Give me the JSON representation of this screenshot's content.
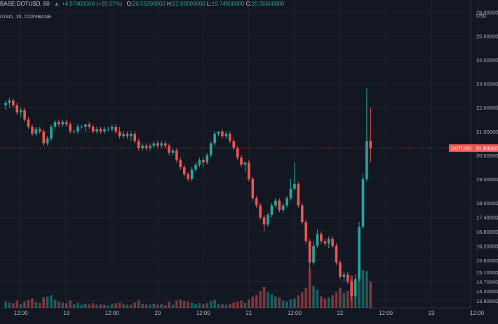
{
  "header": {
    "symbol": "BASE:DOTUSD, 60",
    "open_label": "O:",
    "open": "20.55200000",
    "high_label": "H:",
    "high": "22.00000000",
    "low_label": "L:",
    "low": "19.74900000",
    "close_label": "C:",
    "close": "20.30600000",
    "change": "+4.57400000 (+29.07%)",
    "change_icon": "triangle-up"
  },
  "subheader": "/USD, 1h, COINBASE",
  "axis_currency": "USD",
  "price_badge": {
    "label": "DOTUSD",
    "value": "20.306000"
  },
  "colors": {
    "background": "#131722",
    "up": "#26a69a",
    "down": "#ef5350",
    "grid": "#1e222d",
    "text": "#b2b5be"
  },
  "chart_data": {
    "type": "candlestick",
    "ylim": [
      13.6,
      26.1
    ],
    "y_ticks": [
      {
        "value": 26.0,
        "label": "26.00000"
      },
      {
        "value": 25.0,
        "label": "25.00000"
      },
      {
        "value": 24.0,
        "label": "24.00000"
      },
      {
        "value": 23.0,
        "label": "23.00000"
      },
      {
        "value": 22.0,
        "label": "22.00000"
      },
      {
        "value": 21.0,
        "label": "21.00000"
      },
      {
        "value": 20.0,
        "label": "20.00000"
      },
      {
        "value": 19.0,
        "label": "19.00000"
      },
      {
        "value": 18.0,
        "label": "18.00000"
      },
      {
        "value": 17.4,
        "label": "17.40000"
      },
      {
        "value": 16.8,
        "label": "16.80000"
      },
      {
        "value": 16.2,
        "label": "16.20000"
      },
      {
        "value": 15.6,
        "label": "15.60000"
      },
      {
        "value": 15.1,
        "label": "15.10000"
      },
      {
        "value": 14.7,
        "label": "14.70000"
      },
      {
        "value": 14.3,
        "label": "14.30000"
      },
      {
        "value": 13.9,
        "label": "13.90000"
      }
    ],
    "x_ticks": [
      {
        "index": 4,
        "label": "12:00"
      },
      {
        "index": 16,
        "label": "19"
      },
      {
        "index": 28,
        "label": "12:00"
      },
      {
        "index": 40,
        "label": "20"
      },
      {
        "index": 52,
        "label": "12:00"
      },
      {
        "index": 64,
        "label": "21"
      },
      {
        "index": 76,
        "label": "12:00"
      },
      {
        "index": 88,
        "label": "22"
      },
      {
        "index": 100,
        "label": "12:00"
      },
      {
        "index": 112,
        "label": "23"
      },
      {
        "index": 124,
        "label": "12:00"
      }
    ],
    "candles": [
      {
        "o": 22.1,
        "h": 22.3,
        "l": 21.9,
        "c": 22.2,
        "v": 12
      },
      {
        "o": 22.2,
        "h": 22.4,
        "l": 22.0,
        "c": 22.3,
        "v": 10
      },
      {
        "o": 22.3,
        "h": 22.4,
        "l": 22.0,
        "c": 22.1,
        "v": 9
      },
      {
        "o": 22.1,
        "h": 22.2,
        "l": 21.7,
        "c": 21.8,
        "v": 14
      },
      {
        "o": 21.8,
        "h": 22.0,
        "l": 21.6,
        "c": 21.9,
        "v": 8
      },
      {
        "o": 21.9,
        "h": 22.0,
        "l": 21.4,
        "c": 21.5,
        "v": 12
      },
      {
        "o": 21.5,
        "h": 21.6,
        "l": 21.1,
        "c": 21.2,
        "v": 15
      },
      {
        "o": 21.2,
        "h": 21.3,
        "l": 20.8,
        "c": 20.9,
        "v": 18
      },
      {
        "o": 20.9,
        "h": 21.2,
        "l": 20.8,
        "c": 21.1,
        "v": 11
      },
      {
        "o": 21.1,
        "h": 21.2,
        "l": 20.9,
        "c": 21.0,
        "v": 9
      },
      {
        "o": 21.0,
        "h": 21.1,
        "l": 20.4,
        "c": 20.5,
        "v": 20
      },
      {
        "o": 20.5,
        "h": 20.8,
        "l": 20.4,
        "c": 20.7,
        "v": 22
      },
      {
        "o": 20.7,
        "h": 21.3,
        "l": 20.6,
        "c": 21.2,
        "v": 24
      },
      {
        "o": 21.2,
        "h": 21.5,
        "l": 21.1,
        "c": 21.4,
        "v": 16
      },
      {
        "o": 21.4,
        "h": 21.5,
        "l": 21.2,
        "c": 21.3,
        "v": 12
      },
      {
        "o": 21.3,
        "h": 21.5,
        "l": 21.2,
        "c": 21.4,
        "v": 10
      },
      {
        "o": 21.4,
        "h": 21.5,
        "l": 21.2,
        "c": 21.3,
        "v": 9
      },
      {
        "o": 21.3,
        "h": 21.4,
        "l": 20.9,
        "c": 21.0,
        "v": 14
      },
      {
        "o": 21.0,
        "h": 21.1,
        "l": 20.9,
        "c": 21.0,
        "v": 7
      },
      {
        "o": 21.0,
        "h": 21.3,
        "l": 20.9,
        "c": 21.2,
        "v": 10
      },
      {
        "o": 21.2,
        "h": 21.3,
        "l": 21.1,
        "c": 21.2,
        "v": 6
      },
      {
        "o": 21.2,
        "h": 21.3,
        "l": 21.0,
        "c": 21.3,
        "v": 8
      },
      {
        "o": 21.3,
        "h": 21.4,
        "l": 21.1,
        "c": 21.2,
        "v": 7
      },
      {
        "o": 21.2,
        "h": 21.3,
        "l": 20.9,
        "c": 21.0,
        "v": 9
      },
      {
        "o": 21.0,
        "h": 21.2,
        "l": 20.9,
        "c": 21.1,
        "v": 6
      },
      {
        "o": 21.1,
        "h": 21.2,
        "l": 20.9,
        "c": 21.0,
        "v": 7
      },
      {
        "o": 21.0,
        "h": 21.2,
        "l": 20.9,
        "c": 21.1,
        "v": 6
      },
      {
        "o": 21.1,
        "h": 21.2,
        "l": 21.0,
        "c": 21.1,
        "v": 5
      },
      {
        "o": 21.1,
        "h": 21.3,
        "l": 21.0,
        "c": 21.2,
        "v": 8
      },
      {
        "o": 21.2,
        "h": 21.3,
        "l": 20.9,
        "c": 21.0,
        "v": 9
      },
      {
        "o": 21.0,
        "h": 21.2,
        "l": 20.7,
        "c": 20.8,
        "v": 10
      },
      {
        "o": 20.8,
        "h": 21.0,
        "l": 20.7,
        "c": 20.9,
        "v": 7
      },
      {
        "o": 20.9,
        "h": 21.0,
        "l": 20.7,
        "c": 20.8,
        "v": 6
      },
      {
        "o": 20.8,
        "h": 21.0,
        "l": 20.6,
        "c": 20.9,
        "v": 6
      },
      {
        "o": 20.9,
        "h": 21.0,
        "l": 20.5,
        "c": 20.6,
        "v": 10
      },
      {
        "o": 20.6,
        "h": 20.7,
        "l": 20.2,
        "c": 20.3,
        "v": 14
      },
      {
        "o": 20.3,
        "h": 20.5,
        "l": 20.2,
        "c": 20.4,
        "v": 8
      },
      {
        "o": 20.4,
        "h": 20.5,
        "l": 20.2,
        "c": 20.3,
        "v": 7
      },
      {
        "o": 20.3,
        "h": 20.5,
        "l": 20.2,
        "c": 20.4,
        "v": 6
      },
      {
        "o": 20.4,
        "h": 20.6,
        "l": 20.3,
        "c": 20.5,
        "v": 8
      },
      {
        "o": 20.5,
        "h": 20.6,
        "l": 20.3,
        "c": 20.4,
        "v": 6
      },
      {
        "o": 20.4,
        "h": 20.6,
        "l": 20.3,
        "c": 20.5,
        "v": 7
      },
      {
        "o": 20.5,
        "h": 20.6,
        "l": 20.3,
        "c": 20.4,
        "v": 5
      },
      {
        "o": 20.4,
        "h": 20.5,
        "l": 20.0,
        "c": 20.1,
        "v": 12
      },
      {
        "o": 20.1,
        "h": 20.3,
        "l": 20.0,
        "c": 20.2,
        "v": 6
      },
      {
        "o": 20.2,
        "h": 20.3,
        "l": 19.7,
        "c": 19.8,
        "v": 14
      },
      {
        "o": 19.8,
        "h": 19.9,
        "l": 19.4,
        "c": 19.5,
        "v": 16
      },
      {
        "o": 19.5,
        "h": 19.6,
        "l": 19.1,
        "c": 19.2,
        "v": 13
      },
      {
        "o": 19.2,
        "h": 19.3,
        "l": 18.9,
        "c": 19.0,
        "v": 12
      },
      {
        "o": 19.0,
        "h": 19.5,
        "l": 18.9,
        "c": 19.4,
        "v": 10
      },
      {
        "o": 19.4,
        "h": 19.7,
        "l": 19.3,
        "c": 19.6,
        "v": 8
      },
      {
        "o": 19.6,
        "h": 19.9,
        "l": 19.5,
        "c": 19.8,
        "v": 9
      },
      {
        "o": 19.8,
        "h": 19.9,
        "l": 19.5,
        "c": 19.7,
        "v": 7
      },
      {
        "o": 19.7,
        "h": 20.1,
        "l": 19.6,
        "c": 20.0,
        "v": 9
      },
      {
        "o": 20.0,
        "h": 20.6,
        "l": 19.9,
        "c": 20.5,
        "v": 13
      },
      {
        "o": 20.5,
        "h": 21.0,
        "l": 20.4,
        "c": 20.9,
        "v": 15
      },
      {
        "o": 20.9,
        "h": 21.0,
        "l": 20.8,
        "c": 21.0,
        "v": 8
      },
      {
        "o": 21.0,
        "h": 21.1,
        "l": 20.7,
        "c": 20.8,
        "v": 7
      },
      {
        "o": 20.8,
        "h": 21.0,
        "l": 20.7,
        "c": 20.9,
        "v": 6
      },
      {
        "o": 20.9,
        "h": 21.0,
        "l": 20.5,
        "c": 20.6,
        "v": 8
      },
      {
        "o": 20.6,
        "h": 20.7,
        "l": 20.2,
        "c": 20.3,
        "v": 10
      },
      {
        "o": 20.3,
        "h": 20.4,
        "l": 19.8,
        "c": 19.9,
        "v": 12
      },
      {
        "o": 19.9,
        "h": 20.0,
        "l": 19.5,
        "c": 19.6,
        "v": 14
      },
      {
        "o": 19.6,
        "h": 19.7,
        "l": 19.3,
        "c": 19.7,
        "v": 10
      },
      {
        "o": 19.7,
        "h": 19.8,
        "l": 18.9,
        "c": 19.0,
        "v": 16
      },
      {
        "o": 19.0,
        "h": 19.1,
        "l": 18.1,
        "c": 18.2,
        "v": 22
      },
      {
        "o": 18.2,
        "h": 18.3,
        "l": 17.8,
        "c": 17.9,
        "v": 25
      },
      {
        "o": 17.9,
        "h": 18.0,
        "l": 17.3,
        "c": 17.4,
        "v": 32
      },
      {
        "o": 17.4,
        "h": 17.5,
        "l": 16.8,
        "c": 17.1,
        "v": 40
      },
      {
        "o": 17.1,
        "h": 17.6,
        "l": 17.0,
        "c": 17.5,
        "v": 30
      },
      {
        "o": 17.5,
        "h": 18.0,
        "l": 17.4,
        "c": 17.9,
        "v": 26
      },
      {
        "o": 17.9,
        "h": 18.2,
        "l": 17.8,
        "c": 18.1,
        "v": 22
      },
      {
        "o": 18.1,
        "h": 18.2,
        "l": 17.6,
        "c": 17.7,
        "v": 20
      },
      {
        "o": 17.7,
        "h": 18.0,
        "l": 17.6,
        "c": 17.9,
        "v": 14
      },
      {
        "o": 17.9,
        "h": 18.3,
        "l": 17.8,
        "c": 18.2,
        "v": 12
      },
      {
        "o": 18.2,
        "h": 19.0,
        "l": 18.1,
        "c": 18.6,
        "v": 16
      },
      {
        "o": 18.6,
        "h": 19.7,
        "l": 18.5,
        "c": 18.8,
        "v": 18
      },
      {
        "o": 18.8,
        "h": 18.9,
        "l": 17.8,
        "c": 17.9,
        "v": 24
      },
      {
        "o": 17.9,
        "h": 18.0,
        "l": 17.1,
        "c": 17.2,
        "v": 30
      },
      {
        "o": 17.2,
        "h": 17.3,
        "l": 16.3,
        "c": 16.4,
        "v": 38
      },
      {
        "o": 16.4,
        "h": 16.5,
        "l": 15.2,
        "c": 15.5,
        "v": 75
      },
      {
        "o": 15.5,
        "h": 16.4,
        "l": 15.4,
        "c": 16.2,
        "v": 42
      },
      {
        "o": 16.2,
        "h": 16.9,
        "l": 16.1,
        "c": 16.7,
        "v": 35
      },
      {
        "o": 16.7,
        "h": 16.8,
        "l": 16.3,
        "c": 16.4,
        "v": 22
      },
      {
        "o": 16.4,
        "h": 16.5,
        "l": 16.2,
        "c": 16.3,
        "v": 18
      },
      {
        "o": 16.3,
        "h": 16.6,
        "l": 16.1,
        "c": 16.5,
        "v": 20
      },
      {
        "o": 16.5,
        "h": 16.6,
        "l": 16.1,
        "c": 16.2,
        "v": 24
      },
      {
        "o": 16.2,
        "h": 16.3,
        "l": 15.4,
        "c": 15.5,
        "v": 30
      },
      {
        "o": 15.5,
        "h": 15.6,
        "l": 14.8,
        "c": 14.9,
        "v": 38
      },
      {
        "o": 14.9,
        "h": 15.1,
        "l": 14.7,
        "c": 15.0,
        "v": 28
      },
      {
        "o": 15.0,
        "h": 15.1,
        "l": 14.6,
        "c": 14.7,
        "v": 32
      },
      {
        "o": 14.7,
        "h": 14.8,
        "l": 13.9,
        "c": 14.1,
        "v": 62
      },
      {
        "o": 14.1,
        "h": 15.0,
        "l": 14.0,
        "c": 14.8,
        "v": 55
      },
      {
        "o": 14.8,
        "h": 17.2,
        "l": 14.7,
        "c": 17.0,
        "v": 80
      },
      {
        "o": 17.0,
        "h": 19.2,
        "l": 16.9,
        "c": 19.0,
        "v": 72
      },
      {
        "o": 19.0,
        "h": 22.8,
        "l": 18.9,
        "c": 20.6,
        "v": 70
      },
      {
        "o": 20.6,
        "h": 22.0,
        "l": 19.7,
        "c": 20.3,
        "v": 50
      }
    ]
  }
}
